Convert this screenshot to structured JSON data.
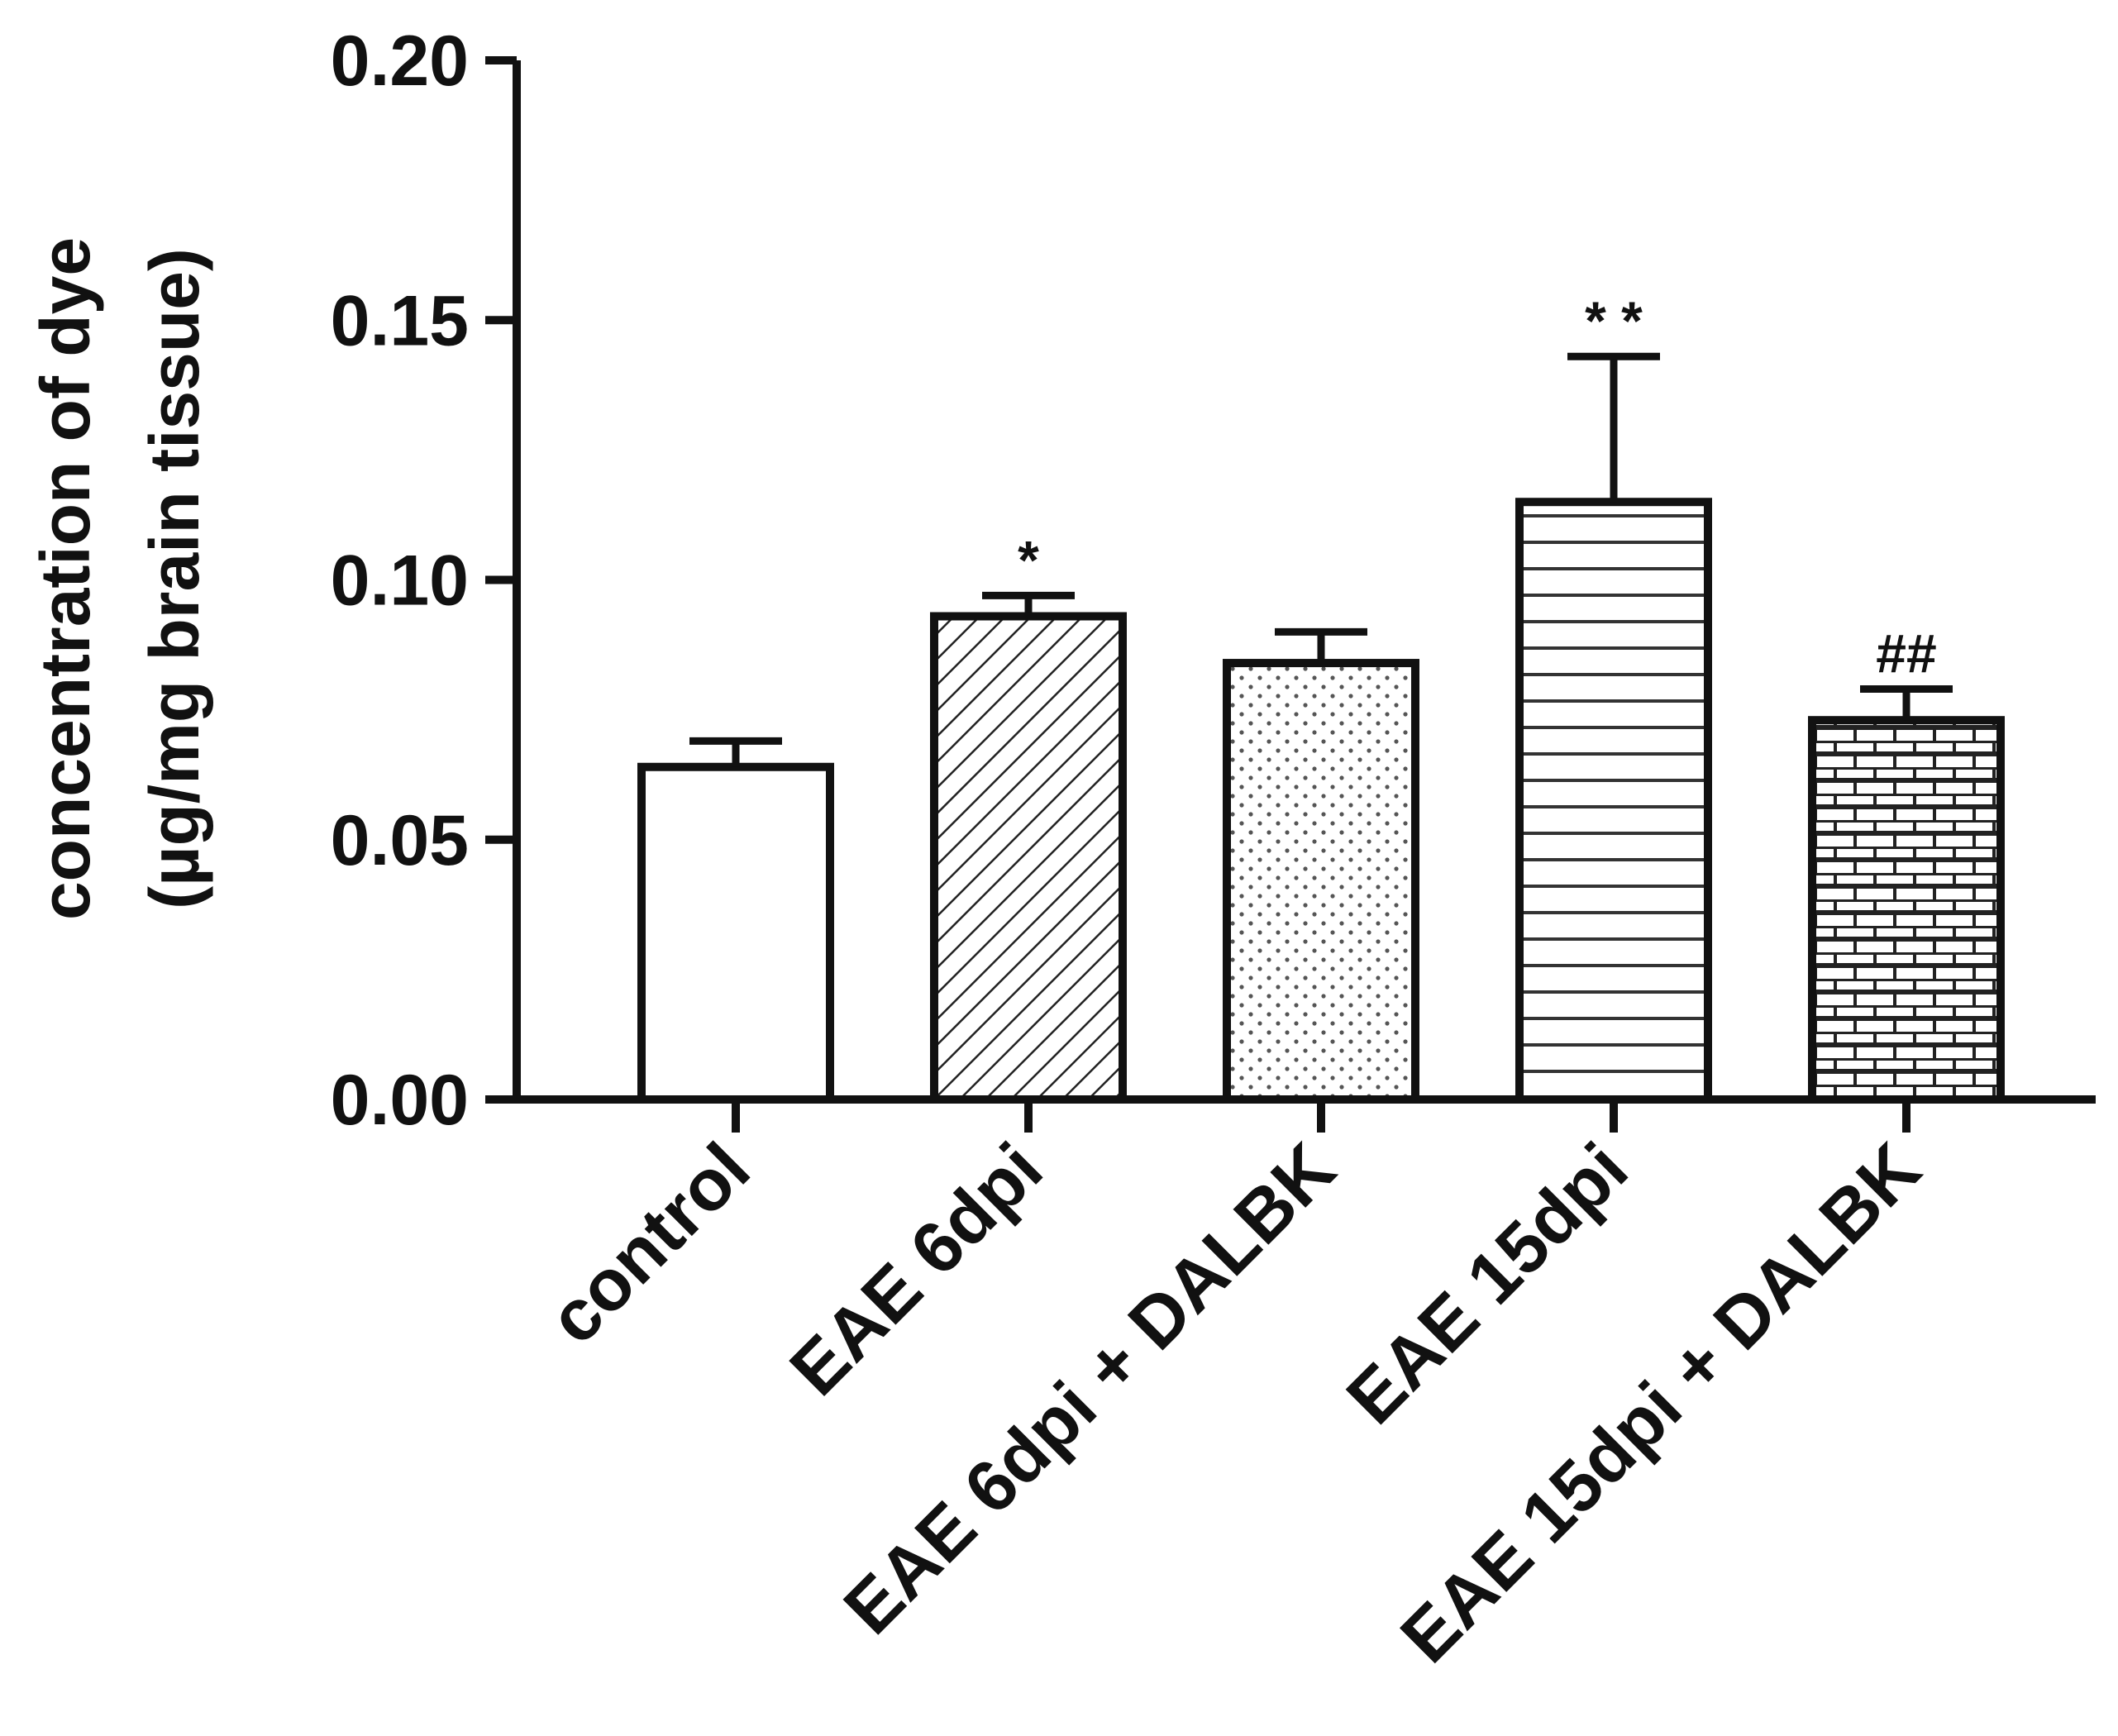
{
  "chart_data": {
    "type": "bar",
    "ylabel_line1": "concentration of dye",
    "ylabel_line2": "(µg/mg brain tissue)",
    "ylim": [
      0,
      0.2
    ],
    "yticks": [
      "0.00",
      "0.05",
      "0.10",
      "0.15",
      "0.20"
    ],
    "ytick_values": [
      0,
      0.05,
      0.1,
      0.15,
      0.2
    ],
    "categories": [
      "control",
      "EAE 6dpi",
      "EAE 6dpi + DALBK",
      "EAE 15dpi",
      "EAE 15dpi + DALBK"
    ],
    "values": [
      0.064,
      0.093,
      0.084,
      0.115,
      0.073
    ],
    "errors": [
      0.005,
      0.004,
      0.006,
      0.028,
      0.006
    ],
    "annotations": [
      "",
      "*",
      "",
      "* *",
      "##"
    ],
    "patterns": [
      "none",
      "diagonal-hatch",
      "dots",
      "horizontal-lines",
      "brick"
    ],
    "bar_fill": "#ffffff",
    "stroke_color": "#111111",
    "grid": false
  }
}
